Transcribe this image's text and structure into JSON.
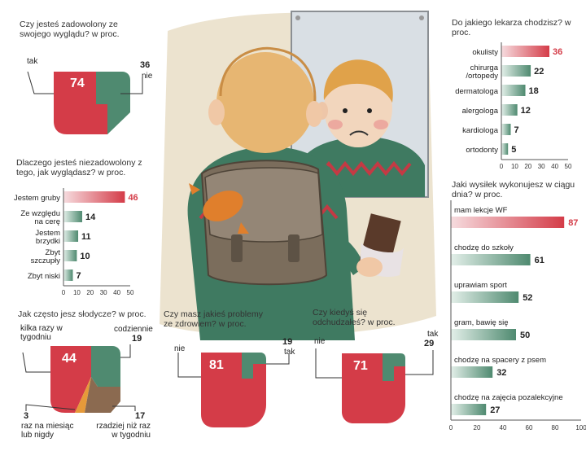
{
  "colors": {
    "red": "#d43c48",
    "green": "#4f8a70",
    "brown": "#8b6a50",
    "orange": "#e69a3a",
    "axis": "#555555"
  },
  "satisfaction": {
    "title": "Czy jesteś zadowolony ze swojego wyglądu?  w proc.",
    "yes_label": "tak",
    "no_label": "nie",
    "yes_value": "74",
    "no_value": "36"
  },
  "why_unhappy": {
    "title": "Dlaczego jesteś niezadowolony z tego, jak wyglądasz? w proc."
  },
  "doctor": {
    "title": "Do jakiego lekarza chodzisz? w proc."
  },
  "sweets": {
    "title": "Jak często jesz słodycze? w proc.",
    "l1": "kilka razy w tygodniu",
    "v1": "44",
    "l2": "codziennie",
    "v2": "19",
    "l3": "raz na miesiąc lub nigdy",
    "v3": "3",
    "l4": "rzadziej niż raz w tygodniu",
    "v4": "17"
  },
  "health": {
    "title": "Czy masz jakieś problemy ze zdrowiem?  w proc.",
    "no_label": "nie",
    "no_value": "81",
    "yes_label": "tak",
    "yes_value": "19"
  },
  "diet": {
    "title": "Czy kiedyś się odchudzałeś? w proc.",
    "no_label": "nie",
    "no_value": "71",
    "yes_label": "tak",
    "yes_value": "29"
  },
  "activity": {
    "title": "Jaki wysiłek wykonujesz w ciągu dnia? w proc."
  },
  "chart_data": [
    {
      "type": "pie",
      "title": "Czy jesteś zadowolony ze swojego wyglądu?  w proc.",
      "slices": [
        {
          "label": "tak",
          "value": 74
        },
        {
          "label": "nie",
          "value": 36
        }
      ]
    },
    {
      "type": "bar",
      "title": "Dlaczego jesteś niezadowolony z tego, jak wyglądasz? w proc.",
      "categories": [
        "Jestem gruby",
        "Ze względu na cerę",
        "Jestem brzydki",
        "Zbyt szczupły",
        "Zbyt niski"
      ],
      "values": [
        46,
        14,
        11,
        10,
        7
      ],
      "xticks": [
        "0",
        "10",
        "20",
        "30",
        "40",
        "50"
      ],
      "xlim": [
        0,
        50
      ]
    },
    {
      "type": "bar",
      "title": "Do jakiego lekarza chodzisz? w proc.",
      "categories": [
        "okulisty",
        "chirurga /ortopedy",
        "dermatologa",
        "alergologa",
        "kardiologa",
        "ortodonty"
      ],
      "values": [
        36,
        22,
        18,
        12,
        7,
        5
      ],
      "xticks": [
        "0",
        "10",
        "20",
        "30",
        "40",
        "50"
      ],
      "xlim": [
        0,
        50
      ]
    },
    {
      "type": "pie",
      "title": "Jak często jesz słodycze? w proc.",
      "slices": [
        {
          "label": "kilka razy w tygodniu",
          "value": 44
        },
        {
          "label": "codziennie",
          "value": 19
        },
        {
          "label": "raz na miesiąc lub nigdy",
          "value": 3
        },
        {
          "label": "rzadziej niż raz w tygodniu",
          "value": 17
        }
      ]
    },
    {
      "type": "pie",
      "title": "Czy masz jakieś problemy ze zdrowiem?  w proc.",
      "slices": [
        {
          "label": "nie",
          "value": 81
        },
        {
          "label": "tak",
          "value": 19
        }
      ]
    },
    {
      "type": "pie",
      "title": "Czy kiedyś się odchudzałeś? w proc.",
      "slices": [
        {
          "label": "nie",
          "value": 71
        },
        {
          "label": "tak",
          "value": 29
        }
      ]
    },
    {
      "type": "bar",
      "title": "Jaki wysiłek wykonujesz w ciągu dnia? w proc.",
      "categories": [
        "mam lekcje WF",
        "chodzę do szkoły",
        "uprawiam sport",
        "gram, bawię się",
        "chodzę na spacery z psem",
        "chodzę na zajęcia pozalekcyjne"
      ],
      "values": [
        87,
        61,
        52,
        50,
        32,
        27
      ],
      "xticks": [
        "0",
        "20",
        "40",
        "60",
        "80",
        "100"
      ],
      "xlim": [
        0,
        100
      ]
    }
  ]
}
